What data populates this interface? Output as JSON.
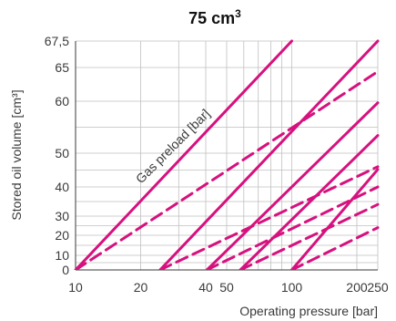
{
  "chart_data": {
    "type": "line",
    "title": "75 cm",
    "title_superscript": "3",
    "xlabel": "Operating pressure [bar]",
    "ylabel": "Stored oil volume [cm³]",
    "annotation": "Gas preload [bar]",
    "x_scale": "log",
    "xlim": [
      10,
      250
    ],
    "x_ticks": [
      10,
      20,
      30,
      40,
      50,
      100,
      200,
      250
    ],
    "x_tick_labels": [
      "10",
      "20",
      "",
      "40",
      "50",
      "100",
      "200",
      "250"
    ],
    "x_grid": [
      10,
      20,
      30,
      40,
      50,
      60,
      70,
      80,
      90,
      100,
      200,
      250
    ],
    "ylim": [
      0,
      67.5
    ],
    "y_ticks": [
      0,
      10,
      20,
      30,
      40,
      50,
      60,
      65,
      67.5
    ],
    "y_tick_labels": [
      "0",
      "10",
      "20",
      "30",
      "40",
      "50",
      "60",
      "65",
      "67,5"
    ],
    "y_grid": [
      0,
      5,
      10,
      15,
      20,
      25,
      30,
      35,
      40,
      45,
      50,
      55,
      60,
      65,
      67.5
    ],
    "y_tick_pixel_hint": "nonlinear",
    "grid": true,
    "line_color": "#d6117e",
    "series": [
      {
        "style": "solid",
        "points": [
          [
            10,
            0
          ],
          [
            100,
            67.5
          ]
        ]
      },
      {
        "style": "dashed",
        "points": [
          [
            10,
            0
          ],
          [
            250,
            64.4
          ]
        ]
      },
      {
        "style": "solid",
        "points": [
          [
            24.6,
            0
          ],
          [
            250,
            67.5
          ]
        ]
      },
      {
        "style": "dashed",
        "points": [
          [
            24.6,
            0
          ],
          [
            250,
            46
          ]
        ]
      },
      {
        "style": "solid",
        "points": [
          [
            40.5,
            0
          ],
          [
            250,
            59.7
          ]
        ]
      },
      {
        "style": "dashed",
        "points": [
          [
            40.5,
            0
          ],
          [
            250,
            40
          ]
        ]
      },
      {
        "style": "solid",
        "points": [
          [
            57.8,
            0
          ],
          [
            250,
            53.4
          ]
        ]
      },
      {
        "style": "dashed",
        "points": [
          [
            57.8,
            0
          ],
          [
            250,
            34
          ]
        ]
      },
      {
        "style": "solid",
        "points": [
          [
            100,
            0
          ],
          [
            250,
            45.2
          ]
        ]
      },
      {
        "style": "dashed",
        "points": [
          [
            100,
            0
          ],
          [
            250,
            24
          ]
        ]
      }
    ]
  }
}
